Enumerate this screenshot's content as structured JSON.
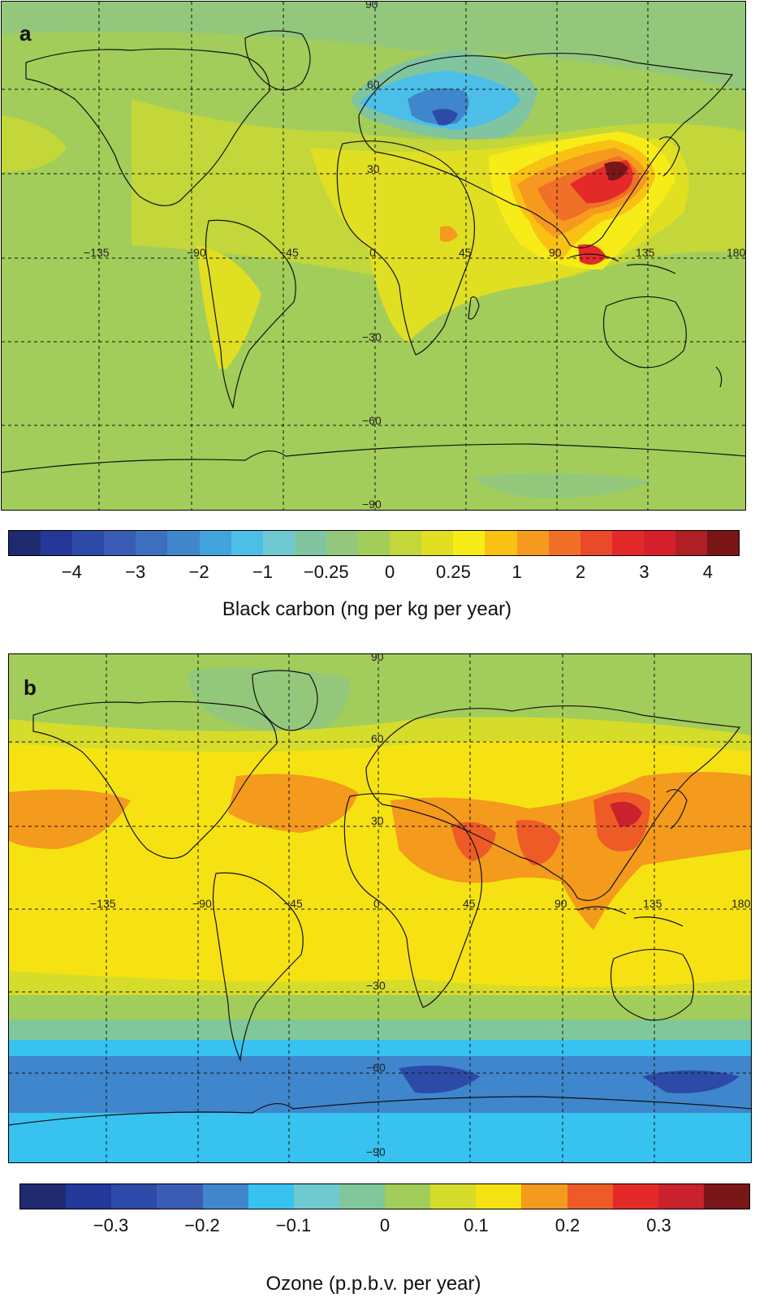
{
  "panels": [
    {
      "letter": "a",
      "colorbar": {
        "title": "Black carbon (ng per kg per year)",
        "colors": [
          "#1f2a70",
          "#24389a",
          "#2d4aa8",
          "#3a5cb5",
          "#3c6fc0",
          "#3f86cc",
          "#43a3dd",
          "#4cbfe8",
          "#70c9d2",
          "#80c4a0",
          "#93c87c",
          "#a2cd5a",
          "#c3d63a",
          "#e0df22",
          "#f7ec17",
          "#f9c213",
          "#f69a1f",
          "#f07028",
          "#eb4a2a",
          "#e42a29",
          "#d71f2c",
          "#b01f26",
          "#7a1518"
        ],
        "ticks": [
          "−4",
          "−3",
          "−2",
          "−1",
          "−0.25",
          "0",
          "0.25",
          "1",
          "2",
          "3",
          "4"
        ],
        "tick_boundaries": [
          2,
          4,
          6,
          8,
          10,
          12,
          14,
          16,
          18,
          20,
          22
        ]
      },
      "grid_labels": {
        "lat": [
          "90",
          "60",
          "30",
          "−30",
          "−60",
          "−90"
        ],
        "lon": [
          "−135",
          "−90",
          "−45",
          "0",
          "45",
          "90",
          "135",
          "180"
        ]
      }
    },
    {
      "letter": "b",
      "colorbar": {
        "title": "Ozone (p.p.b.v. per year)",
        "colors": [
          "#1f2a70",
          "#24389a",
          "#2d4aa8",
          "#3a5cb5",
          "#3f86cc",
          "#37c2f0",
          "#6ec9d0",
          "#80c79a",
          "#a2cd5a",
          "#d6dc2a",
          "#f6e212",
          "#f49a1c",
          "#ee5b26",
          "#e42a29",
          "#c9222d",
          "#7a1518"
        ],
        "ticks": [
          "−0.3",
          "−0.2",
          "−0.1",
          "0",
          "0.1",
          "0.2",
          "0.3"
        ],
        "tick_boundaries": [
          2,
          4,
          6,
          8,
          10,
          12,
          14
        ]
      },
      "grid_labels": {
        "lat": [
          "90",
          "60",
          "30",
          "−30",
          "−60",
          "−90"
        ],
        "lon": [
          "−135",
          "−90",
          "−45",
          "0",
          "45",
          "90",
          "135",
          "180"
        ]
      }
    }
  ]
}
